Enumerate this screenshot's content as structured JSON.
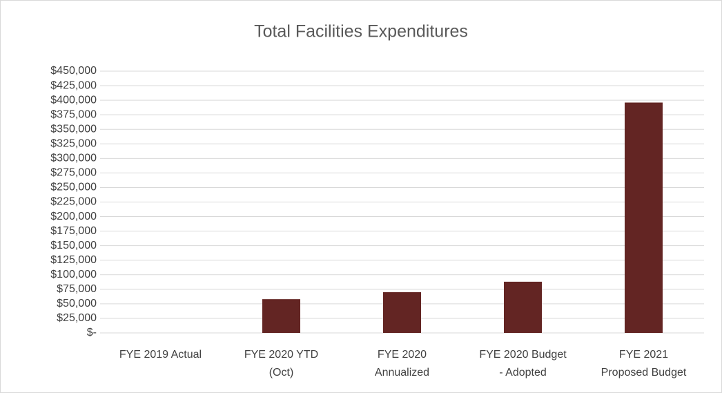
{
  "chart_data": {
    "type": "bar",
    "title": "Total Facilities Expenditures",
    "categories": [
      [
        "FYE 2019  Actual"
      ],
      [
        "FYE 2020 YTD",
        "(Oct)"
      ],
      [
        "FYE 2020",
        "Annualized"
      ],
      [
        "FYE 2020 Budget",
        "- Adopted"
      ],
      [
        "FYE 2021",
        "Proposed Budget"
      ]
    ],
    "values": [
      0,
      58000,
      70000,
      88000,
      396000
    ],
    "color": "#632523",
    "ylim": [
      0,
      450000
    ],
    "yticks": [
      {
        "value": 0,
        "label": "$-"
      },
      {
        "value": 25000,
        "label": "$25,000"
      },
      {
        "value": 50000,
        "label": "$50,000"
      },
      {
        "value": 75000,
        "label": "$75,000"
      },
      {
        "value": 100000,
        "label": "$100,000"
      },
      {
        "value": 125000,
        "label": "$125,000"
      },
      {
        "value": 150000,
        "label": "$150,000"
      },
      {
        "value": 175000,
        "label": "$175,000"
      },
      {
        "value": 200000,
        "label": "$200,000"
      },
      {
        "value": 225000,
        "label": "$225,000"
      },
      {
        "value": 250000,
        "label": "$250,000"
      },
      {
        "value": 275000,
        "label": "$275,000"
      },
      {
        "value": 300000,
        "label": "$300,000"
      },
      {
        "value": 325000,
        "label": "$325,000"
      },
      {
        "value": 350000,
        "label": "$350,000"
      },
      {
        "value": 375000,
        "label": "$375,000"
      },
      {
        "value": 400000,
        "label": "$400,000"
      },
      {
        "value": 425000,
        "label": "$425,000"
      },
      {
        "value": 450000,
        "label": "$450,000"
      }
    ],
    "grid": true
  }
}
